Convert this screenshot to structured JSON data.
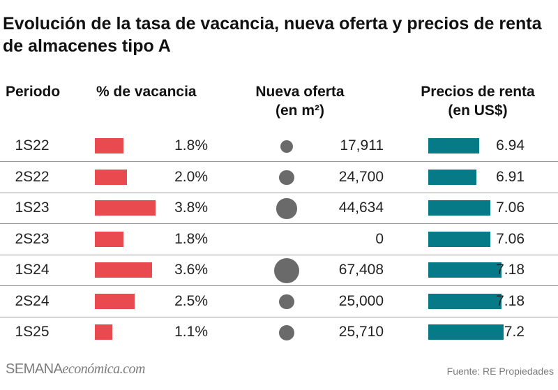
{
  "title": "Evolución de la tasa de vacancia, nueva oferta y precios de renta de almacenes tipo A",
  "headers": {
    "periodo": "Periodo",
    "vacancia": "% de vacancia",
    "oferta_line1": "Nueva oferta",
    "oferta_line2": "(en m²)",
    "precio_line1": "Precios de renta",
    "precio_line2": "(en US$)"
  },
  "chart_data": {
    "type": "table",
    "title": "Evolución de la tasa de vacancia, nueva oferta y precios de renta de almacenes tipo A",
    "columns": [
      "Periodo",
      "% de vacancia",
      "Nueva oferta (en m²)",
      "Precios de renta (en US$)"
    ],
    "rows": [
      {
        "periodo": "1S22",
        "vacancia": 1.8,
        "vacancia_label": "1.8%",
        "oferta": 17911,
        "oferta_label": "17,911",
        "precio": 6.94,
        "precio_label": "6.94"
      },
      {
        "periodo": "2S22",
        "vacancia": 2.0,
        "vacancia_label": "2.0%",
        "oferta": 24700,
        "oferta_label": "24,700",
        "precio": 6.91,
        "precio_label": "6.91"
      },
      {
        "periodo": "1S23",
        "vacancia": 3.8,
        "vacancia_label": "3.8%",
        "oferta": 44634,
        "oferta_label": "44,634",
        "precio": 7.06,
        "precio_label": "7.06"
      },
      {
        "periodo": "2S23",
        "vacancia": 1.8,
        "vacancia_label": "1.8%",
        "oferta": 0,
        "oferta_label": "0",
        "precio": 7.06,
        "precio_label": "7.06"
      },
      {
        "periodo": "1S24",
        "vacancia": 3.6,
        "vacancia_label": "3.6%",
        "oferta": 67408,
        "oferta_label": "67,408",
        "precio": 7.18,
        "precio_label": "7.18"
      },
      {
        "periodo": "2S24",
        "vacancia": 2.5,
        "vacancia_label": "2.5%",
        "oferta": 25000,
        "oferta_label": "25,000",
        "precio": 7.18,
        "precio_label": "7.18"
      },
      {
        "periodo": "1S25",
        "vacancia": 1.1,
        "vacancia_label": "1.1%",
        "oferta": 25710,
        "oferta_label": "25,710",
        "precio": 7.2,
        "precio_label": "7.2"
      }
    ],
    "colors": {
      "vacancia": "#e84a4f",
      "oferta": "#6a6a6a",
      "precio": "#067a86"
    }
  },
  "footer": {
    "brand_part1": "SEMANA",
    "brand_part2": "económica.com",
    "source": "Fuente: RE Propiedades"
  }
}
